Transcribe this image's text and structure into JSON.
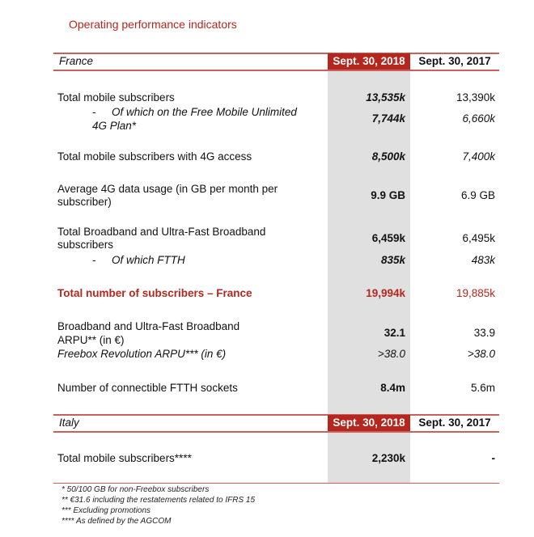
{
  "title": "Operating performance indicators",
  "france": {
    "label": "France",
    "col_2018": "Sept. 30, 2018",
    "col_2017": "Sept. 30, 2017",
    "rows": [
      {
        "label": "Total mobile subscribers",
        "v2018": "13,535k",
        "v2017": "13,390k"
      },
      {
        "dash": "-",
        "label_l1": "Of which on the Free Mobile Unlimited",
        "label_l2": "4G Plan*",
        "v2018": "7,744k",
        "v2017": "6,660k"
      },
      {
        "label": "Total mobile subscribers with 4G access",
        "v2018": "8,500k",
        "v2017": "7,400k"
      },
      {
        "label_l1": "Average 4G data usage (in GB per month per",
        "label_l2": "subscriber)",
        "v2018": "9.9 GB",
        "v2017": "6.9 GB"
      },
      {
        "label_l1": "Total Broadband and Ultra-Fast Broadband",
        "label_l2": "subscribers",
        "v2018": "6,459k",
        "v2017": "6,495k"
      },
      {
        "dash": "-",
        "label": "Of which FTTH",
        "v2018": "835k",
        "v2017": "483k"
      },
      {
        "label": "Total number of subscribers – France",
        "v2018": "19,994k",
        "v2017": "19,885k"
      },
      {
        "label_l1": "Broadband and Ultra-Fast Broadband",
        "label_l2": "ARPU** (in €)",
        "v2018": "32.1",
        "v2017": "33.9"
      },
      {
        "label": "Freebox Revolution ARPU*** (in €)",
        "v2018": ">38.0",
        "v2017": ">38.0"
      },
      {
        "label": "Number of connectible FTTH sockets",
        "v2018": "8.4m",
        "v2017": "5.6m"
      }
    ]
  },
  "italy": {
    "label": "Italy",
    "col_2018": "Sept. 30, 2018",
    "col_2017": "Sept. 30, 2017",
    "rows": [
      {
        "label": "Total mobile subscribers****",
        "v2018": "2,230k",
        "v2017": "-"
      }
    ]
  },
  "footnotes": [
    "* 50/100 GB for non-Freebox subscribers",
    "** €31.6 including the restatements related to IFRS 15",
    "*** Excluding promotions",
    "**** As defined by the AGCOM"
  ],
  "colors": {
    "accent": "#b5261e",
    "highlight_column": "#e0e0e0",
    "rule": "#c9605a"
  }
}
